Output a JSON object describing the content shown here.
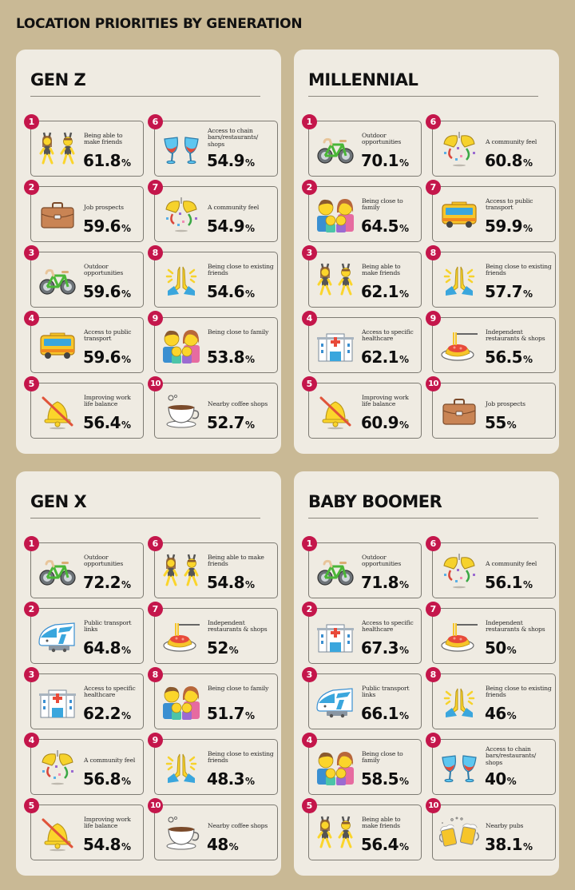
{
  "page": {
    "title": "LOCATION PRIORITIES BY GENERATION",
    "colors": {
      "background": "#c9b995",
      "panel": "#efebe2",
      "badge": "#c4164b",
      "card_border": "#7d7a72",
      "text": "#111111"
    }
  },
  "panels": [
    {
      "title": "GEN Z",
      "items": [
        {
          "rank": "1",
          "label": "Being able to make friends",
          "value": "61.8",
          "unit": "%",
          "icon": "dancing-friends-icon"
        },
        {
          "rank": "2",
          "label": "Job prospects",
          "value": "59.6",
          "unit": "%",
          "icon": "briefcase-icon"
        },
        {
          "rank": "3",
          "label": "Outdoor opportunities",
          "value": "59.6",
          "unit": "%",
          "icon": "bicycle-icon"
        },
        {
          "rank": "4",
          "label": "Access to public transport",
          "value": "59.6",
          "unit": "%",
          "icon": "bus-icon"
        },
        {
          "rank": "5",
          "label": "Improving work life balance",
          "value": "56.4",
          "unit": "%",
          "icon": "bell-slash-icon"
        },
        {
          "rank": "6",
          "label": "Access to chain bars/restaurants/ shops",
          "value": "54.9",
          "unit": "%",
          "icon": "wine-glasses-icon"
        },
        {
          "rank": "7",
          "label": "A community feel",
          "value": "54.9",
          "unit": "%",
          "icon": "confetti-ball-icon"
        },
        {
          "rank": "8",
          "label": "Being close to existing friends",
          "value": "54.6",
          "unit": "%",
          "icon": "folded-hands-icon"
        },
        {
          "rank": "9",
          "label": "Being close to family",
          "value": "53.8",
          "unit": "%",
          "icon": "family-icon"
        },
        {
          "rank": "10",
          "label": "Nearby coffee shops",
          "value": "52.7",
          "unit": "%",
          "icon": "coffee-cup-icon"
        }
      ]
    },
    {
      "title": "MILLENNIAL",
      "items": [
        {
          "rank": "1",
          "label": "Outdoor opportunities",
          "value": "70.1",
          "unit": "%",
          "icon": "bicycle-icon"
        },
        {
          "rank": "2",
          "label": "Being close to family",
          "value": "64.5",
          "unit": "%",
          "icon": "family-icon"
        },
        {
          "rank": "3",
          "label": "Being able to make friends",
          "value": "62.1",
          "unit": "%",
          "icon": "dancing-friends-icon"
        },
        {
          "rank": "4",
          "label": "Access to specific healthcare",
          "value": "62.1",
          "unit": "%",
          "icon": "hospital-icon"
        },
        {
          "rank": "5",
          "label": "Improving work life balance",
          "value": "60.9",
          "unit": "%",
          "icon": "bell-slash-icon"
        },
        {
          "rank": "6",
          "label": "A community feel",
          "value": "60.8",
          "unit": "%",
          "icon": "confetti-ball-icon"
        },
        {
          "rank": "7",
          "label": "Access to public transport",
          "value": "59.9",
          "unit": "%",
          "icon": "bus-icon"
        },
        {
          "rank": "8",
          "label": "Being close to existing friends",
          "value": "57.7",
          "unit": "%",
          "icon": "folded-hands-icon"
        },
        {
          "rank": "9",
          "label": "Independent restaurants & shops",
          "value": "56.5",
          "unit": "%",
          "icon": "spaghetti-icon"
        },
        {
          "rank": "10",
          "label": "Job prospects",
          "value": "55",
          "unit": "%",
          "icon": "briefcase-icon"
        }
      ]
    },
    {
      "title": "GEN X",
      "items": [
        {
          "rank": "1",
          "label": "Outdoor opportunities",
          "value": "72.2",
          "unit": "%",
          "icon": "bicycle-icon"
        },
        {
          "rank": "2",
          "label": "Public transport links",
          "value": "64.8",
          "unit": "%",
          "icon": "bullet-train-icon"
        },
        {
          "rank": "3",
          "label": "Access to specific healthcare",
          "value": "62.2",
          "unit": "%",
          "icon": "hospital-icon"
        },
        {
          "rank": "4",
          "label": "A community feel",
          "value": "56.8",
          "unit": "%",
          "icon": "confetti-ball-icon"
        },
        {
          "rank": "5",
          "label": "Improving work life balance",
          "value": "54.8",
          "unit": "%",
          "icon": "bell-slash-icon"
        },
        {
          "rank": "6",
          "label": "Being able to make friends",
          "value": "54.8",
          "unit": "%",
          "icon": "dancing-friends-icon"
        },
        {
          "rank": "7",
          "label": "Independent restaurants & shops",
          "value": "52",
          "unit": "%",
          "icon": "spaghetti-icon"
        },
        {
          "rank": "8",
          "label": "Being close to family",
          "value": "51.7",
          "unit": "%",
          "icon": "family-icon"
        },
        {
          "rank": "9",
          "label": "Being close to existing friends",
          "value": "48.3",
          "unit": "%",
          "icon": "folded-hands-icon"
        },
        {
          "rank": "10",
          "label": "Nearby coffee shops",
          "value": "48",
          "unit": "%",
          "icon": "coffee-cup-icon"
        }
      ]
    },
    {
      "title": "BABY BOOMER",
      "items": [
        {
          "rank": "1",
          "label": "Outdoor opportunities",
          "value": "71.8",
          "unit": "%",
          "icon": "bicycle-icon"
        },
        {
          "rank": "2",
          "label": "Access to specific healthcare",
          "value": "67.3",
          "unit": "%",
          "icon": "hospital-icon"
        },
        {
          "rank": "3",
          "label": "Public transport links",
          "value": "66.1",
          "unit": "%",
          "icon": "bullet-train-icon"
        },
        {
          "rank": "4",
          "label": "Being close to family",
          "value": "58.5",
          "unit": "%",
          "icon": "family-icon"
        },
        {
          "rank": "5",
          "label": "Being able to make friends",
          "value": "56.4",
          "unit": "%",
          "icon": "dancing-friends-icon"
        },
        {
          "rank": "6",
          "label": "A community feel",
          "value": "56.1",
          "unit": "%",
          "icon": "confetti-ball-icon"
        },
        {
          "rank": "7",
          "label": "Independent restaurants & shops",
          "value": "50",
          "unit": "%",
          "icon": "spaghetti-icon"
        },
        {
          "rank": "8",
          "label": "Being close to existing friends",
          "value": "46",
          "unit": "%",
          "icon": "folded-hands-icon"
        },
        {
          "rank": "9",
          "label": "Access to chain bars/restaurants/ shops",
          "value": "40",
          "unit": "%",
          "icon": "wine-glasses-icon"
        },
        {
          "rank": "10",
          "label": "Nearby pubs",
          "value": "38.1",
          "unit": "%",
          "icon": "beer-mugs-icon"
        }
      ]
    }
  ]
}
